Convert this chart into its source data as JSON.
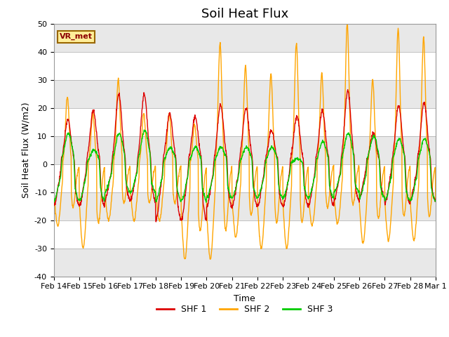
{
  "title": "Soil Heat Flux",
  "xlabel": "Time",
  "ylabel": "Soil Heat Flux (W/m2)",
  "ylim": [
    -40,
    50
  ],
  "colors": {
    "SHF 1": "#dd0000",
    "SHF 2": "#ffa500",
    "SHF 3": "#00cc00"
  },
  "legend_labels": [
    "SHF 1",
    "SHF 2",
    "SHF 3"
  ],
  "annotation_text": "VR_met",
  "annotation_box_color": "#ffee99",
  "annotation_border_color": "#996600",
  "background_color": "#ffffff",
  "xtick_labels": [
    "Feb 14",
    "Feb 15",
    "Feb 16",
    "Feb 17",
    "Feb 18",
    "Feb 19",
    "Feb 20",
    "Feb 21",
    "Feb 22",
    "Feb 23",
    "Feb 24",
    "Feb 25",
    "Feb 26",
    "Feb 27",
    "Feb 28",
    "Mar 1"
  ],
  "title_fontsize": 13,
  "label_fontsize": 9,
  "tick_fontsize": 8,
  "line_width": 1.0,
  "shf1_peaks": [
    16,
    19,
    25,
    25,
    18,
    17,
    21,
    20,
    12,
    17,
    19,
    26,
    11,
    21,
    22
  ],
  "shf2_peaks": [
    24,
    18,
    30,
    18,
    18,
    14,
    43,
    35,
    32,
    43,
    32,
    50,
    30,
    48,
    45
  ],
  "shf2_troughs": [
    -22,
    -30,
    -20,
    -20,
    -20,
    -34,
    -34,
    -26,
    -30,
    -30,
    -22,
    -21,
    -28,
    -27,
    -27
  ],
  "shf3_peaks": [
    11,
    5,
    11,
    12,
    6,
    6,
    6,
    6,
    6,
    2,
    8,
    11,
    10,
    9,
    9
  ],
  "shf1_troughs": [
    -15,
    -15,
    -13,
    -13,
    -20,
    -20,
    -15,
    -15,
    -15,
    -15,
    -15,
    -13,
    -12,
    -14,
    -13
  ],
  "shf3_troughs": [
    -13,
    -13,
    -10,
    -10,
    -13,
    -13,
    -12,
    -12,
    -12,
    -12,
    -12,
    -10,
    -12,
    -13,
    -13
  ]
}
